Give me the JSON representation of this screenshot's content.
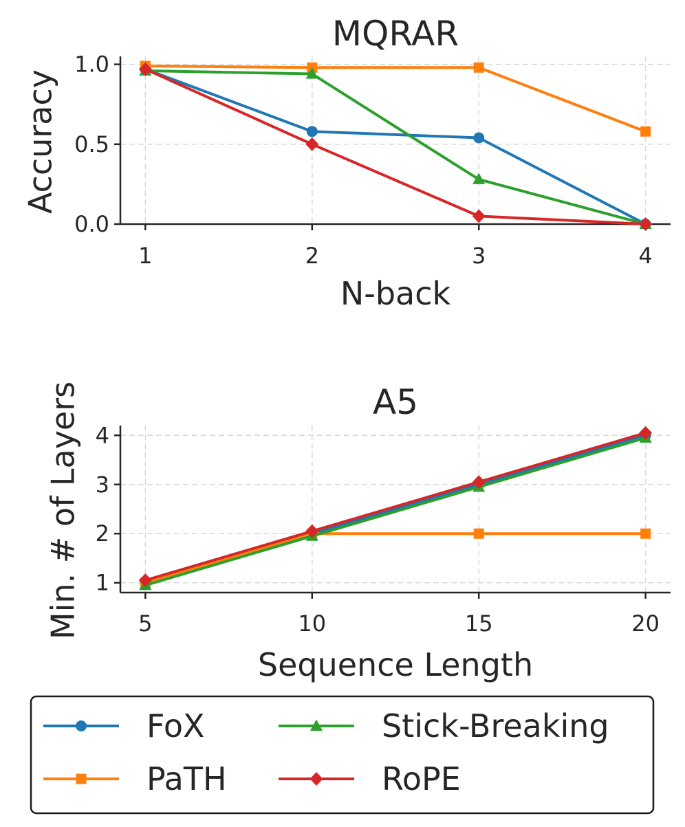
{
  "colors": {
    "FoX": "#1f77b4",
    "PaTH": "#ff7f0e",
    "Stick-Breaking": "#2ca02c",
    "RoPE": "#d62728"
  },
  "chart_data": [
    {
      "type": "line",
      "title": "MQRAR",
      "xlabel": "N-back",
      "ylabel": "Accuracy",
      "x": [
        1,
        2,
        3,
        4
      ],
      "x_ticks": [
        "1",
        "2",
        "3",
        "4"
      ],
      "y_ticks": [
        "0.0",
        "0.5",
        "1.0"
      ],
      "y_tick_values": [
        0.0,
        0.5,
        1.0
      ],
      "xlim": [
        0.85,
        4.15
      ],
      "ylim": [
        0.0,
        1.05
      ],
      "grid": true,
      "series": [
        {
          "name": "FoX",
          "marker": "circle",
          "values": [
            0.97,
            0.58,
            0.54,
            0.0
          ]
        },
        {
          "name": "PaTH",
          "marker": "square",
          "values": [
            0.99,
            0.98,
            0.98,
            0.58
          ]
        },
        {
          "name": "Stick-Breaking",
          "marker": "triangle",
          "values": [
            0.96,
            0.94,
            0.28,
            0.0
          ]
        },
        {
          "name": "RoPE",
          "marker": "diamond",
          "values": [
            0.97,
            0.5,
            0.05,
            0.0
          ]
        }
      ]
    },
    {
      "type": "line",
      "title": "A5",
      "xlabel": "Sequence Length",
      "ylabel": "Min. # of Layers",
      "x": [
        5,
        10,
        15,
        20
      ],
      "x_ticks": [
        "5",
        "10",
        "15",
        "20"
      ],
      "y_ticks": [
        "1",
        "2",
        "3",
        "4"
      ],
      "y_tick_values": [
        1,
        2,
        3,
        4
      ],
      "xlim": [
        4.25,
        20.75
      ],
      "ylim": [
        0.8,
        4.2
      ],
      "grid": true,
      "series": [
        {
          "name": "FoX",
          "marker": "circle",
          "values": [
            1,
            2,
            3,
            4
          ]
        },
        {
          "name": "PaTH",
          "marker": "square",
          "values": [
            1,
            2,
            2,
            2
          ]
        },
        {
          "name": "Stick-Breaking",
          "marker": "triangle",
          "values": [
            0.95,
            1.95,
            2.95,
            3.95
          ]
        },
        {
          "name": "RoPE",
          "marker": "diamond",
          "values": [
            1.05,
            2.05,
            3.05,
            4.05
          ]
        }
      ]
    }
  ],
  "legend": {
    "placement": "bottom",
    "entries": [
      "FoX",
      "PaTH",
      "Stick-Breaking",
      "RoPE"
    ]
  }
}
